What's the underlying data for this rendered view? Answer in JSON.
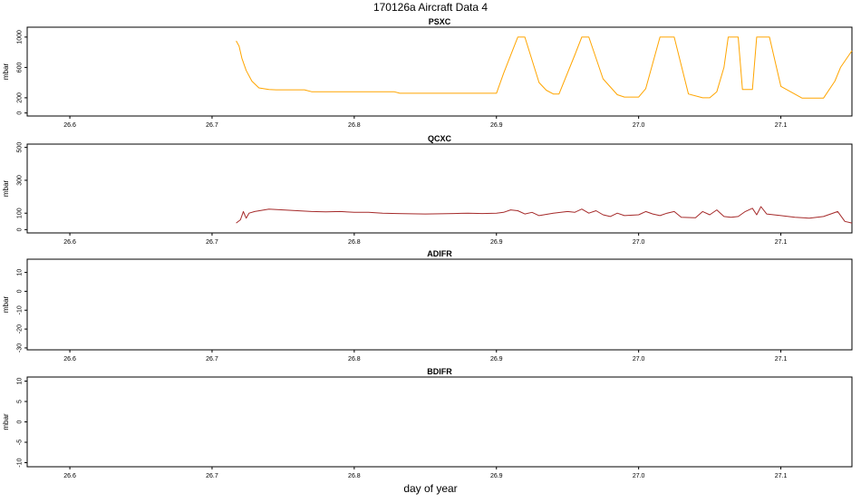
{
  "figure": {
    "title": "170126a    Aircraft Data 4",
    "xlabel": "day of year"
  },
  "chart_data": [
    {
      "type": "line",
      "title": "PSXC",
      "ylabel": "mbar",
      "xlim": [
        26.57,
        27.15
      ],
      "ylim": [
        -40,
        1130
      ],
      "x_ticks": [
        26.6,
        26.7,
        26.8,
        26.9,
        27.0,
        27.1
      ],
      "x_tick_labels": [
        "26.6",
        "26.7",
        "26.8",
        "26.9",
        "27.0",
        "27.1"
      ],
      "y_ticks": [
        0,
        200,
        600,
        1000
      ],
      "y_tick_labels": [
        "0",
        "200",
        "600",
        "1000"
      ],
      "color": "#FFA500",
      "series": [
        {
          "x": [
            26.717,
            26.719,
            26.721,
            26.724,
            26.728,
            26.733,
            26.74,
            26.745,
            26.765,
            26.77,
            26.828,
            26.832,
            26.9,
            26.905,
            26.915,
            26.92,
            26.93,
            26.935,
            26.94,
            26.944,
            26.955,
            26.96,
            26.965,
            26.975,
            26.985,
            26.99,
            27.0,
            27.005,
            27.015,
            27.025,
            27.035,
            27.045,
            27.05,
            27.055,
            27.06,
            27.063,
            27.07,
            27.073,
            27.08,
            27.083,
            27.092,
            27.1,
            27.115,
            27.125,
            27.13,
            27.138,
            27.142,
            27.15
          ],
          "y": [
            950,
            880,
            720,
            560,
            420,
            330,
            310,
            305,
            305,
            280,
            280,
            260,
            260,
            520,
            1000,
            1000,
            400,
            300,
            250,
            250,
            760,
            1000,
            1000,
            450,
            240,
            210,
            210,
            320,
            1000,
            1000,
            250,
            200,
            200,
            280,
            600,
            1000,
            1000,
            310,
            310,
            1000,
            1000,
            350,
            195,
            195,
            195,
            420,
            600,
            820
          ]
        }
      ]
    },
    {
      "type": "line",
      "title": "QCXC",
      "ylabel": "mbar",
      "xlim": [
        26.57,
        27.15
      ],
      "ylim": [
        -20,
        520
      ],
      "x_ticks": [
        26.6,
        26.7,
        26.8,
        26.9,
        27.0,
        27.1
      ],
      "x_tick_labels": [
        "26.6",
        "26.7",
        "26.8",
        "26.9",
        "27.0",
        "27.1"
      ],
      "y_ticks": [
        0,
        100,
        300,
        500
      ],
      "y_tick_labels": [
        "0",
        "100",
        "300",
        "500"
      ],
      "color": "#A52A2A",
      "series": [
        {
          "x": [
            26.717,
            26.72,
            26.722,
            26.724,
            26.726,
            26.73,
            26.74,
            26.75,
            26.76,
            26.77,
            26.78,
            26.79,
            26.8,
            26.81,
            26.82,
            26.83,
            26.84,
            26.85,
            26.86,
            26.87,
            26.88,
            26.89,
            26.9,
            26.905,
            26.91,
            26.915,
            26.92,
            26.925,
            26.93,
            26.94,
            26.95,
            26.955,
            26.96,
            26.965,
            26.97,
            26.975,
            26.98,
            26.985,
            26.99,
            27.0,
            27.005,
            27.01,
            27.015,
            27.02,
            27.025,
            27.03,
            27.04,
            27.045,
            27.05,
            27.055,
            27.06,
            27.065,
            27.07,
            27.075,
            27.08,
            27.083,
            27.086,
            27.09,
            27.1,
            27.11,
            27.12,
            27.13,
            27.135,
            27.14,
            27.145,
            27.15
          ],
          "y": [
            40,
            60,
            110,
            70,
            100,
            110,
            125,
            120,
            115,
            110,
            108,
            110,
            105,
            105,
            100,
            98,
            96,
            95,
            96,
            98,
            100,
            98,
            100,
            105,
            120,
            115,
            95,
            105,
            85,
            100,
            110,
            105,
            125,
            100,
            115,
            90,
            80,
            100,
            85,
            90,
            110,
            95,
            85,
            100,
            110,
            75,
            72,
            110,
            90,
            120,
            80,
            75,
            80,
            110,
            130,
            90,
            140,
            95,
            85,
            75,
            70,
            80,
            95,
            110,
            50,
            40
          ]
        }
      ]
    },
    {
      "type": "line",
      "title": "ADIFR",
      "ylabel": "mbar",
      "xlim": [
        26.57,
        27.15
      ],
      "ylim": [
        -31,
        17
      ],
      "x_ticks": [
        26.6,
        26.7,
        26.8,
        26.9,
        27.0,
        27.1
      ],
      "x_tick_labels": [
        "26.6",
        "26.7",
        "26.8",
        "26.9",
        "27.0",
        "27.1"
      ],
      "y_ticks": [
        -30,
        -20,
        -10,
        0,
        10
      ],
      "y_tick_labels": [
        "-30",
        "-20",
        "-10",
        "0",
        "10"
      ],
      "series": []
    },
    {
      "type": "line",
      "title": "BDIFR",
      "ylabel": "mbar",
      "xlim": [
        26.57,
        27.15
      ],
      "ylim": [
        -11,
        11
      ],
      "x_ticks": [
        26.6,
        26.7,
        26.8,
        26.9,
        27.0,
        27.1
      ],
      "x_tick_labels": [
        "26.6",
        "26.7",
        "26.8",
        "26.9",
        "27.0",
        "27.1"
      ],
      "y_ticks": [
        -10,
        -5,
        0,
        5,
        10
      ],
      "y_tick_labels": [
        "-10",
        "-5",
        "0",
        "5",
        "10"
      ],
      "series": []
    }
  ]
}
